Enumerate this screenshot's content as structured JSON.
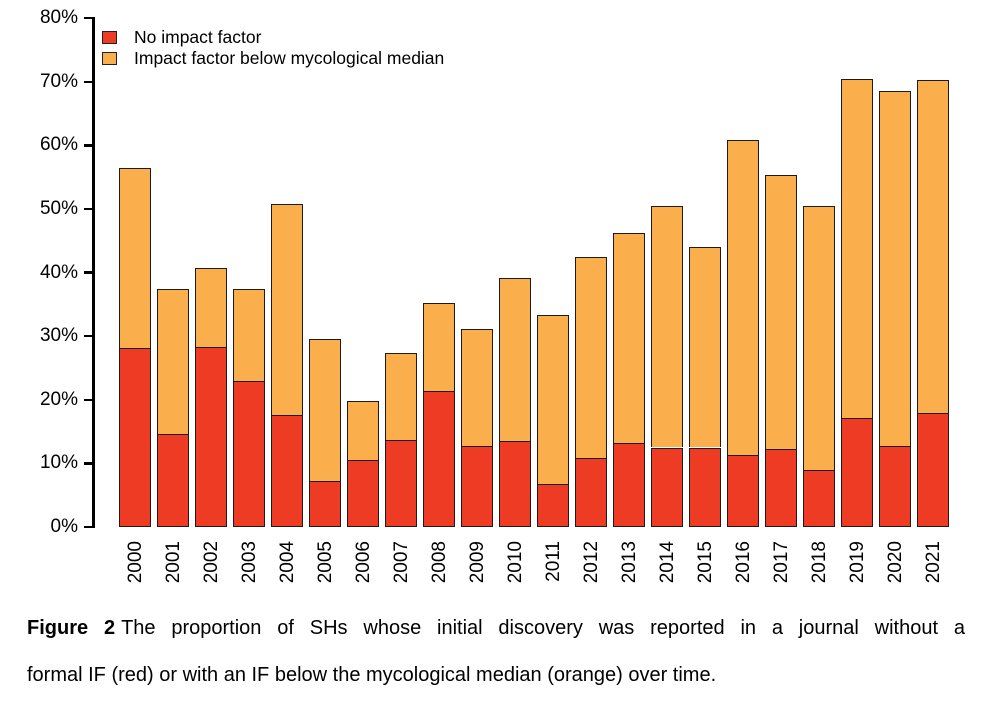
{
  "figure": {
    "caption_label": "Figure 2",
    "caption_lines": [
      "The proportion of SHs whose initial discovery was reported in a journal without a",
      "formal IF (red) or with an IF below the mycological median (orange) over time."
    ]
  },
  "chart_data": {
    "type": "bar",
    "stacked": true,
    "title": "",
    "xlabel": "",
    "ylabel": "",
    "ylim": [
      0,
      80
    ],
    "grid": false,
    "legend_position": "top-left",
    "yticks": [
      "0%",
      "10%",
      "20%",
      "30%",
      "40%",
      "50%",
      "60%",
      "70%",
      "80%"
    ],
    "categories": [
      "2000",
      "2001",
      "2002",
      "2003",
      "2004",
      "2005",
      "2006",
      "2007",
      "2008",
      "2009",
      "2010",
      "2011",
      "2012",
      "2013",
      "2014",
      "2015",
      "2016",
      "2017",
      "2018",
      "2019",
      "2020",
      "2021"
    ],
    "series": [
      {
        "name": "No impact factor",
        "color": "#EE3B23",
        "values": [
          28.1,
          14.7,
          28.3,
          23.0,
          17.6,
          7.3,
          10.5,
          13.7,
          21.4,
          12.8,
          13.6,
          6.7,
          10.8,
          13.2,
          12.5,
          12.5,
          11.3,
          12.2,
          8.9,
          17.1,
          12.7,
          17.9
        ]
      },
      {
        "name": "Impact factor below mycological median",
        "color": "#FAAF4C",
        "values": [
          28.3,
          22.8,
          12.4,
          14.5,
          33.2,
          22.2,
          9.3,
          13.6,
          13.8,
          18.4,
          25.6,
          26.6,
          31.7,
          33.0,
          38.0,
          31.5,
          49.6,
          43.2,
          41.5,
          53.4,
          55.9,
          52.4
        ]
      }
    ]
  }
}
